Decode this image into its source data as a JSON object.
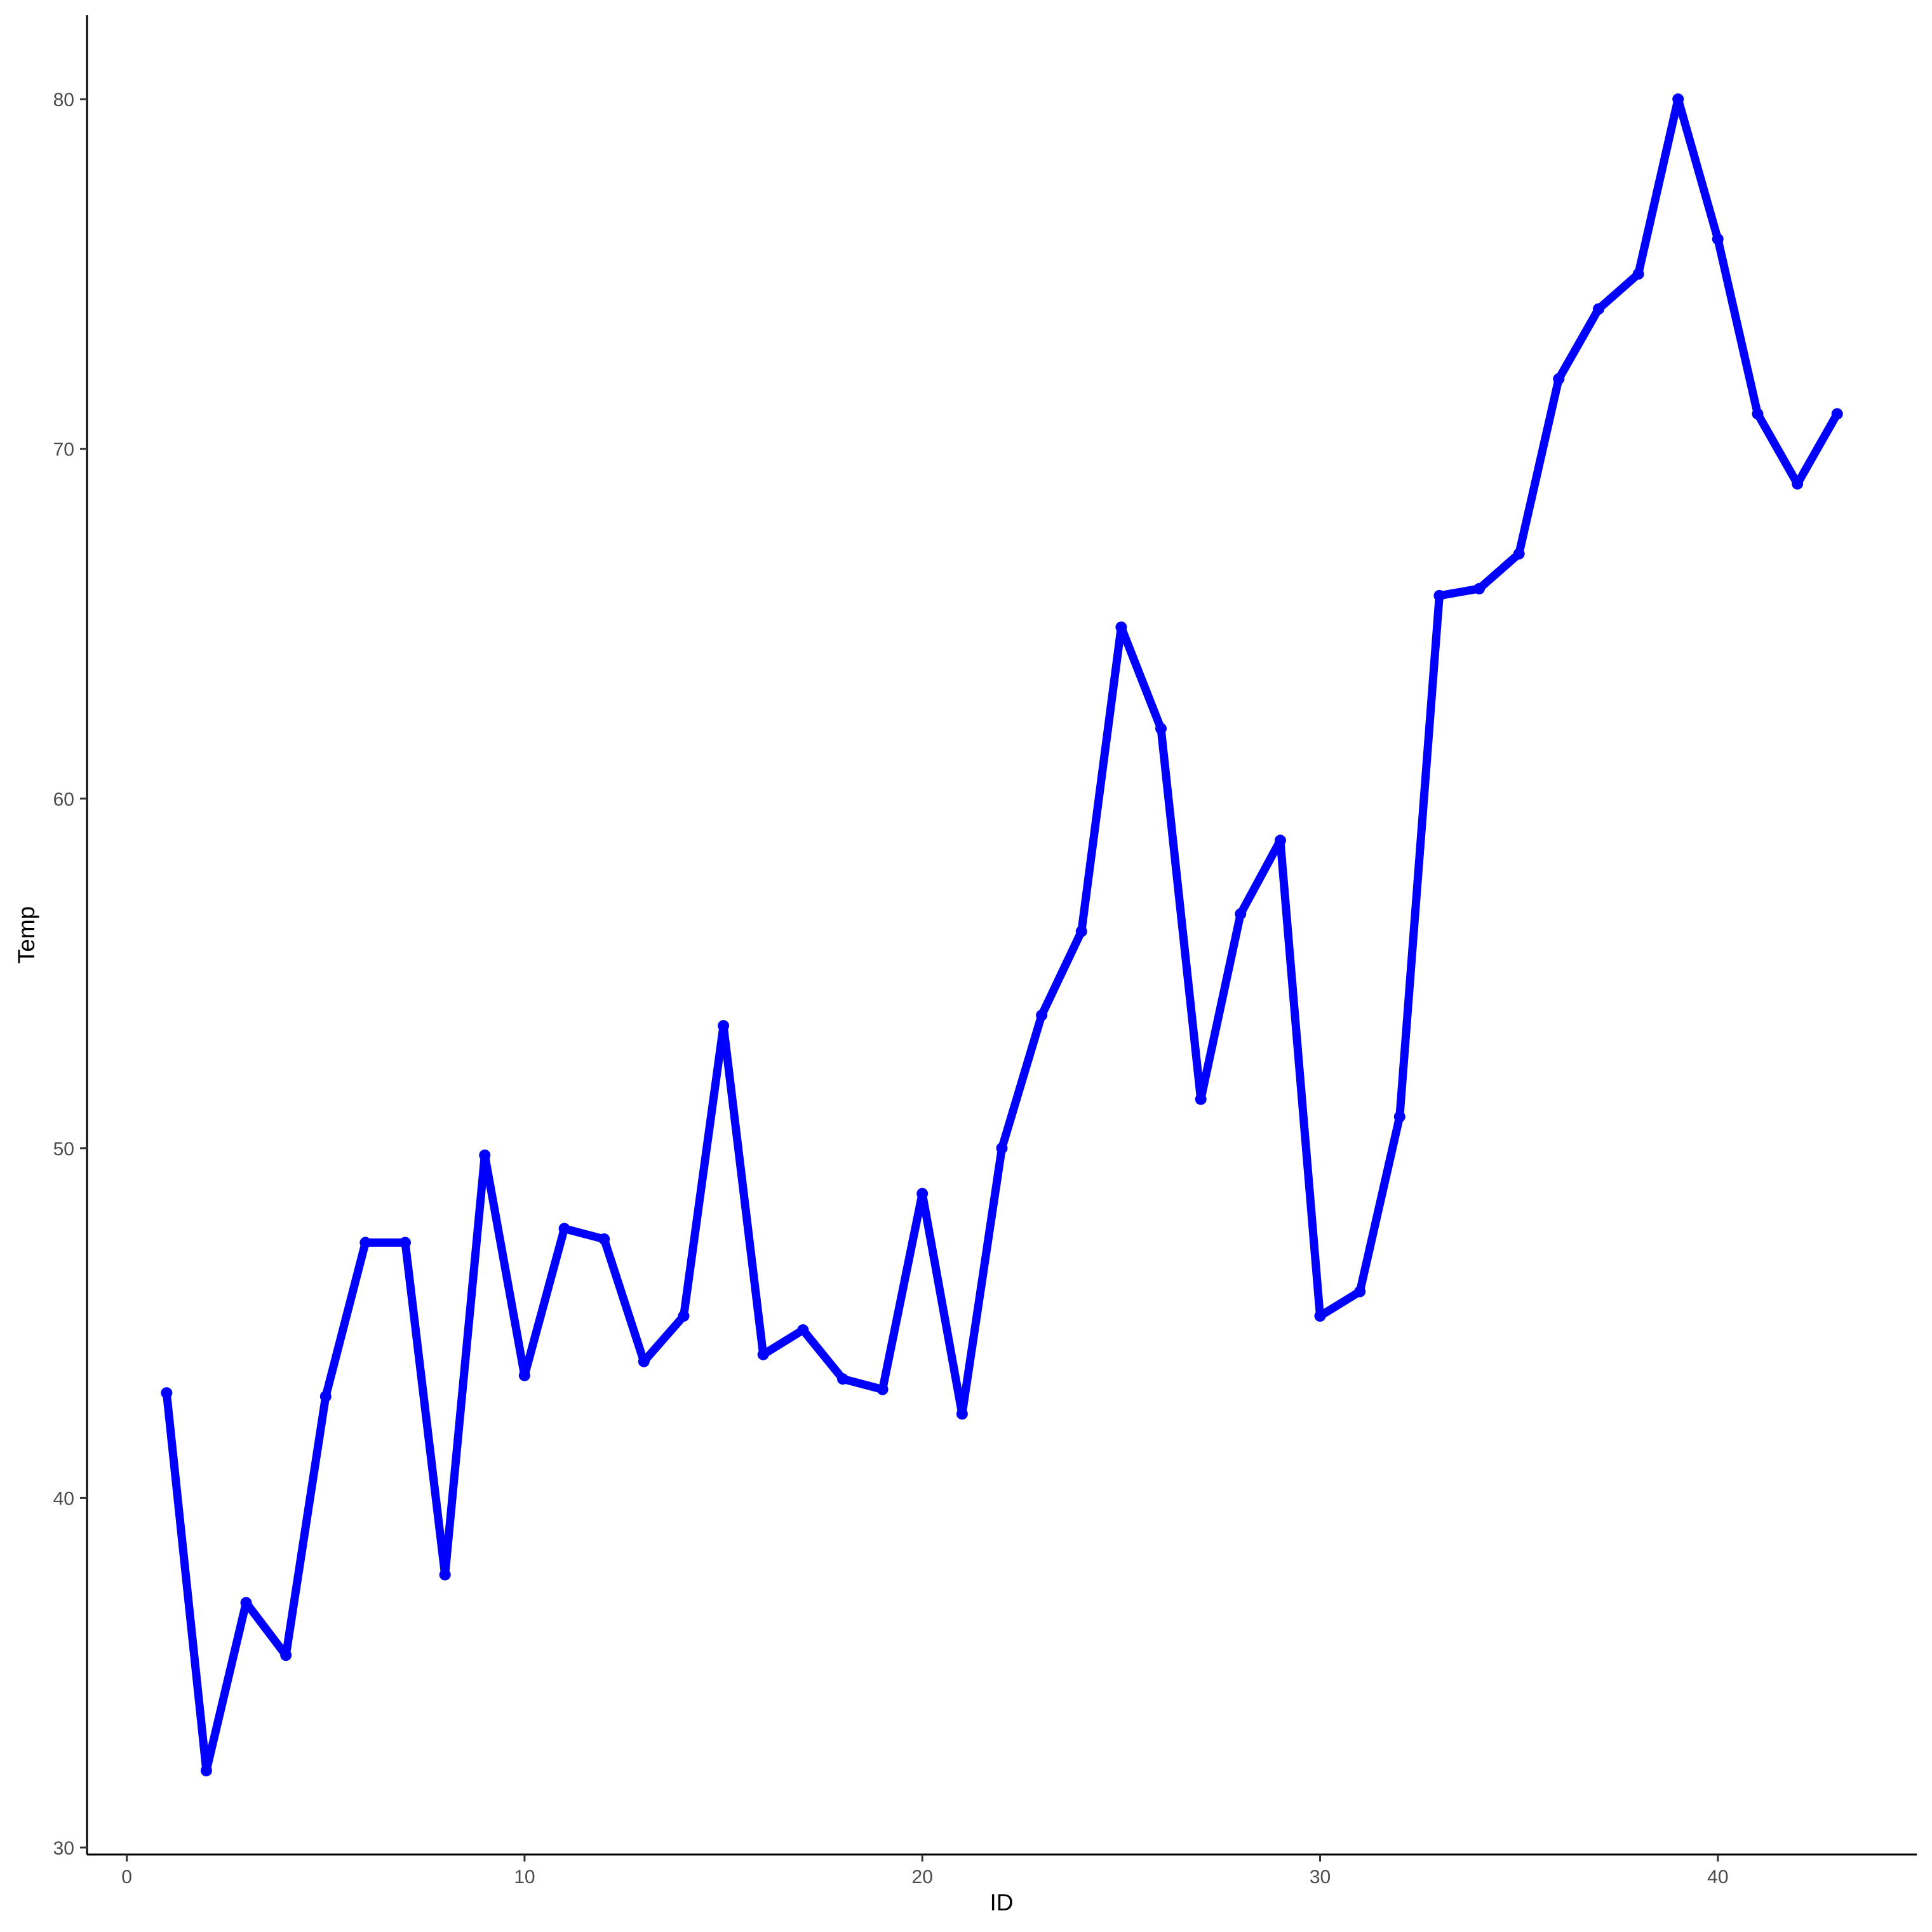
{
  "chart_data": {
    "type": "line",
    "title": "",
    "xlabel": "ID",
    "ylabel": "Temp",
    "xlim": [
      -1,
      45
    ],
    "ylim": [
      29.8,
      82.4
    ],
    "x_ticks": [
      0,
      10,
      20,
      30,
      40
    ],
    "y_ticks": [
      30,
      40,
      50,
      60,
      70,
      80
    ],
    "grid": false,
    "legend": "none",
    "series": [
      {
        "color": "#0000FF",
        "x": [
          1,
          2,
          3,
          4,
          5,
          6,
          7,
          8,
          9,
          10,
          11,
          12,
          13,
          14,
          15,
          16,
          17,
          18,
          19,
          20,
          21,
          22,
          23,
          24,
          25,
          26,
          27,
          28,
          29,
          30,
          31,
          32,
          33,
          34,
          35,
          36,
          37,
          38,
          39,
          40,
          41,
          42,
          43
        ],
        "values": [
          43.0,
          32.2,
          37.0,
          35.5,
          42.9,
          47.3,
          47.3,
          37.8,
          49.8,
          43.5,
          47.7,
          47.4,
          43.9,
          45.2,
          53.5,
          44.1,
          44.8,
          43.4,
          43.1,
          48.7,
          42.4,
          50.0,
          53.8,
          56.2,
          64.9,
          62.0,
          51.4,
          56.7,
          58.8,
          45.2,
          45.9,
          50.9,
          65.8,
          66.0,
          67.0,
          72.0,
          74.0,
          75.0,
          80.0,
          76.0,
          71.0,
          69.0,
          71.0
        ]
      }
    ]
  }
}
